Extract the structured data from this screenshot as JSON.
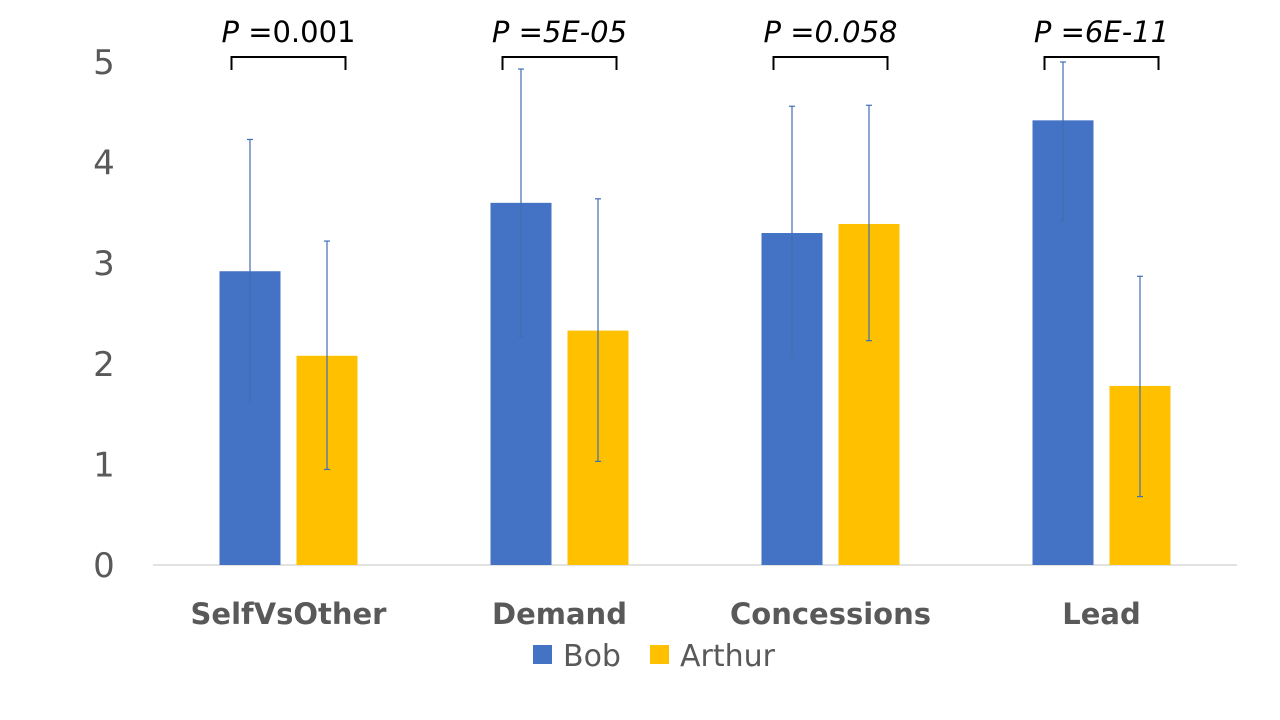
{
  "chart_data": {
    "type": "bar",
    "categories": [
      "SelfVsOther",
      "Demand",
      "Concessions",
      "Lead"
    ],
    "series": [
      {
        "name": "Bob",
        "color": "#4472C4",
        "values": [
          2.92,
          3.6,
          3.3,
          4.42
        ],
        "error_low": [
          1.62,
          2.27,
          2.05,
          3.42
        ],
        "error_high": [
          4.23,
          4.93,
          4.56,
          5.0
        ]
      },
      {
        "name": "Arthur",
        "color": "#FFC000",
        "values": [
          2.08,
          2.33,
          3.39,
          1.78
        ],
        "error_low": [
          0.95,
          1.03,
          2.23,
          0.68
        ],
        "error_high": [
          3.22,
          3.64,
          4.57,
          2.87
        ]
      }
    ],
    "ylim": [
      0,
      5
    ],
    "yticks": [
      "0",
      "1",
      "2",
      "3",
      "4",
      "5"
    ],
    "annotations": [
      {
        "prefix": "P ",
        "value": "=0.001",
        "value_italic": false
      },
      {
        "prefix": "P ",
        "value": "=5E-05",
        "value_italic": true
      },
      {
        "prefix": "P ",
        "value": "=0.058",
        "value_italic": true
      },
      {
        "prefix": "P ",
        "value": "=6E-11",
        "value_italic": true
      }
    ],
    "legend_position": "bottom",
    "grid": false
  }
}
